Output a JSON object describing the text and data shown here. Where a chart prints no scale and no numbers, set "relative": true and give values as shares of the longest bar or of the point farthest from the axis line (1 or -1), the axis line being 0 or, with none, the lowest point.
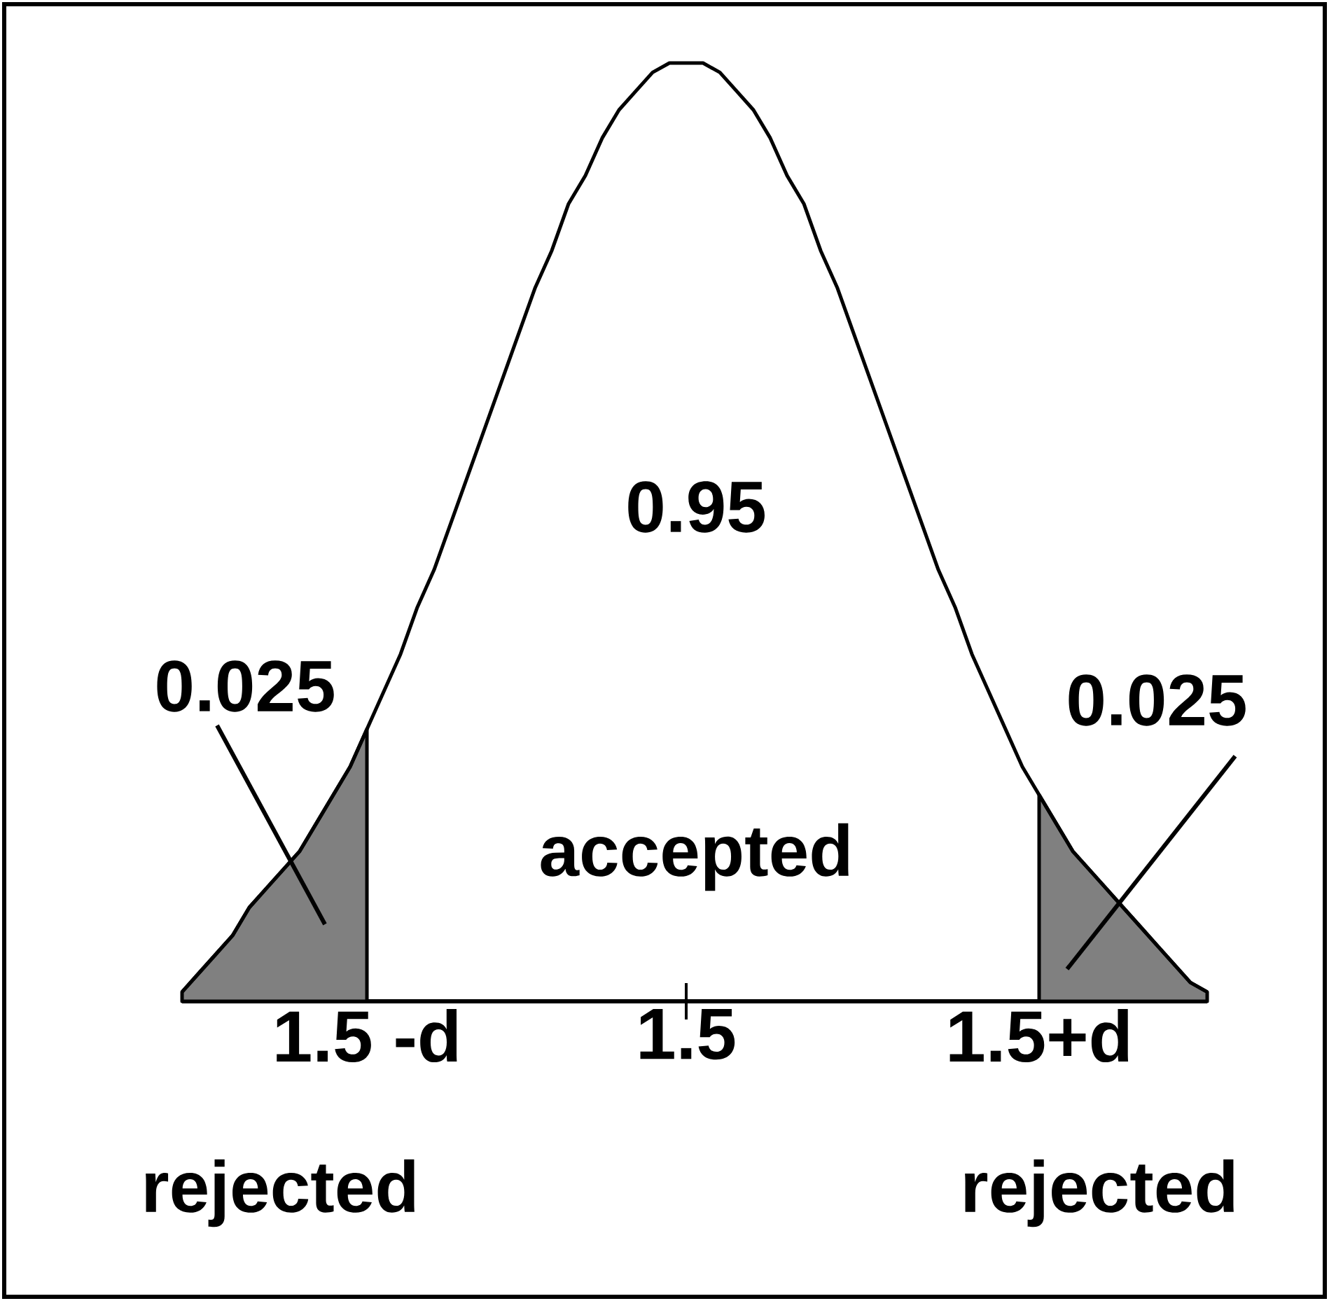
{
  "chart_data": {
    "type": "line",
    "relative": true,
    "categories": [
      null,
      null,
      null,
      null,
      null,
      null,
      null,
      null,
      null,
      null,
      null,
      "1.5 -d",
      null,
      null,
      null,
      null,
      null,
      null,
      null,
      null,
      null,
      null,
      null,
      null,
      null,
      null,
      null,
      null,
      null,
      null,
      "1.5",
      null,
      null,
      null,
      null,
      null,
      null,
      null,
      null,
      null,
      null,
      null,
      null,
      null,
      null,
      null,
      null,
      null,
      null,
      null,
      null,
      "1.5+d",
      null,
      null,
      null,
      null,
      null,
      null,
      null,
      null,
      null,
      null
    ],
    "series": [
      {
        "type": "area",
        "color": "#808080",
        "values": [
          0.01,
          0.03,
          0.05,
          0.07,
          0.1,
          0.12,
          0.14,
          0.16,
          0.19,
          0.22,
          0.25,
          0.29,
          null,
          null,
          null,
          null,
          null,
          null,
          null,
          null,
          null,
          null,
          null,
          null,
          null,
          null,
          null,
          null,
          null,
          null,
          null,
          null,
          null,
          null,
          null,
          null,
          null,
          null,
          null,
          null,
          null,
          null,
          null,
          null,
          null,
          null,
          null,
          null,
          null,
          null,
          null,
          null,
          null,
          null,
          null,
          null,
          null,
          null,
          null,
          null,
          null,
          null
        ]
      },
      {
        "type": "area",
        "color": "#808080",
        "values": [
          null,
          null,
          null,
          null,
          null,
          null,
          null,
          null,
          null,
          null,
          null,
          null,
          null,
          null,
          null,
          null,
          null,
          null,
          null,
          null,
          null,
          null,
          null,
          null,
          null,
          null,
          null,
          null,
          null,
          null,
          null,
          null,
          null,
          null,
          null,
          null,
          null,
          null,
          null,
          null,
          null,
          null,
          null,
          null,
          null,
          null,
          null,
          null,
          null,
          null,
          null,
          0.22,
          0.19,
          0.16,
          0.14,
          0.12,
          0.1,
          0.08,
          0.06,
          0.04,
          0.02,
          0.01
        ]
      },
      {
        "color": "#000000",
        "values": [
          0.01,
          0.03,
          0.05,
          0.07,
          0.1,
          0.12,
          0.14,
          0.16,
          0.19,
          0.22,
          0.25,
          0.29,
          0.33,
          0.37,
          0.42,
          0.46,
          0.51,
          0.56,
          0.61,
          0.66,
          0.71,
          0.76,
          0.8,
          0.85,
          0.88,
          0.92,
          0.95,
          0.97,
          0.99,
          1.0,
          1.0,
          1.0,
          0.99,
          0.97,
          0.95,
          0.92,
          0.88,
          0.85,
          0.8,
          0.76,
          0.71,
          0.66,
          0.61,
          0.56,
          0.51,
          0.46,
          0.42,
          0.37,
          0.33,
          0.29,
          0.25,
          0.22,
          0.19,
          0.16,
          0.14,
          0.12,
          0.1,
          0.08,
          0.06,
          0.04,
          0.02,
          0.01
        ]
      }
    ],
    "annotations": [
      "0.95",
      "0.025",
      "0.025",
      "accepted",
      "rejected",
      "rejected"
    ]
  }
}
